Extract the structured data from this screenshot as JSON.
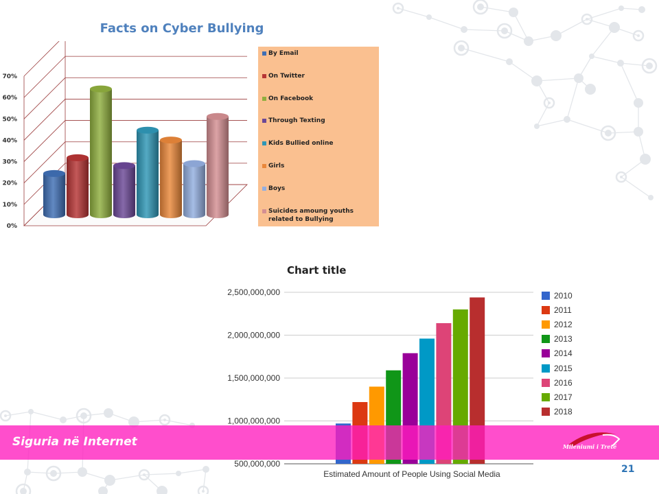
{
  "slide": {
    "footer_title": "Siguria në Internet",
    "logo_text": "Mileniumi i Tretë",
    "page_number": "21",
    "accent_color": "#ff1cbe"
  },
  "chart_data": [
    {
      "type": "bar",
      "title": "Facts on Cyber Bullying",
      "xlabel": "",
      "ylabel": "",
      "ylim": [
        0,
        70
      ],
      "yticks": [
        "0%",
        "10%",
        "20%",
        "30%",
        "40%",
        "50%",
        "60%",
        "70%"
      ],
      "grid": true,
      "legend_position": "right",
      "series": [
        {
          "name": "By Email",
          "value": 21,
          "color": "#3f6fb4"
        },
        {
          "name": "On Twitter",
          "value": 29,
          "color": "#b63535"
        },
        {
          "name": "On Facebook",
          "value": 64,
          "color": "#8fae3e"
        },
        {
          "name": "Through Texting",
          "value": 25,
          "color": "#6b4896"
        },
        {
          "name": "Kids Bullied online",
          "value": 43,
          "color": "#2f97b6"
        },
        {
          "name": "Girls",
          "value": 38,
          "color": "#e9873a"
        },
        {
          "name": "Boys",
          "value": 26,
          "color": "#93aedf"
        },
        {
          "name": "Suicides amoung youths related to Bullying",
          "value": 50,
          "color": "#d48f92"
        }
      ]
    },
    {
      "type": "bar",
      "title": "Chart title",
      "xlabel": "Estimated Amount of People Using Social Media",
      "ylabel": "",
      "ylim": [
        500000000,
        2500000000
      ],
      "yticks": [
        "500,000,000",
        "1,000,000,000",
        "1,500,000,000",
        "2,000,000,000",
        "2,500,000,000"
      ],
      "grid": true,
      "legend_position": "right",
      "series": [
        {
          "name": "2010",
          "value": 970000000,
          "color": "#3366cc"
        },
        {
          "name": "2011",
          "value": 1220000000,
          "color": "#dc3912"
        },
        {
          "name": "2012",
          "value": 1400000000,
          "color": "#ff9900"
        },
        {
          "name": "2013",
          "value": 1590000000,
          "color": "#109618"
        },
        {
          "name": "2014",
          "value": 1790000000,
          "color": "#990099"
        },
        {
          "name": "2015",
          "value": 1960000000,
          "color": "#0099c6"
        },
        {
          "name": "2016",
          "value": 2140000000,
          "color": "#dd4477"
        },
        {
          "name": "2017",
          "value": 2300000000,
          "color": "#66aa00"
        },
        {
          "name": "2018",
          "value": 2440000000,
          "color": "#b82e2e"
        }
      ]
    }
  ]
}
